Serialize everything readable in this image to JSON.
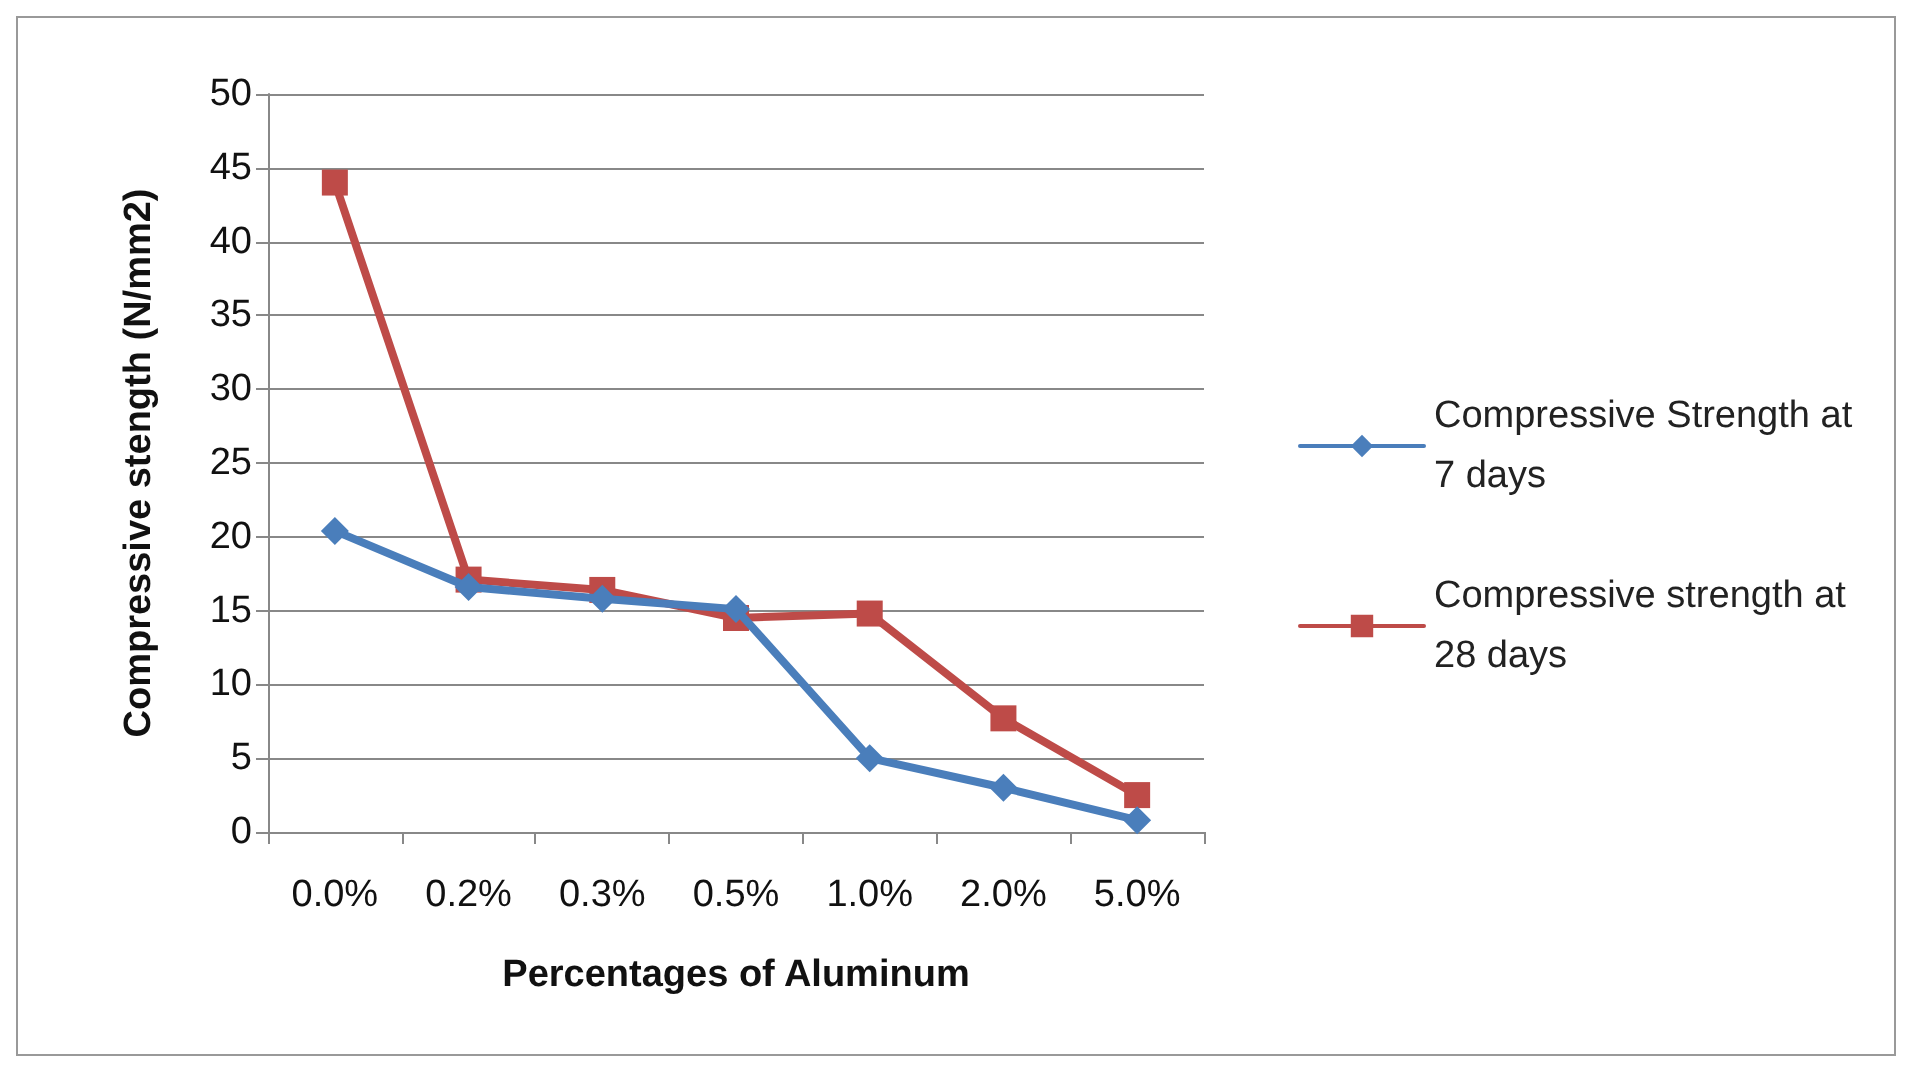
{
  "chart_data": {
    "type": "line",
    "xlabel": "Percentages of Aluminum",
    "ylabel": "Compressive stength (N/mm2)",
    "categories": [
      "0.0%",
      "0.2%",
      "0.3%",
      "0.5%",
      "1.0%",
      "2.0%",
      "5.0%"
    ],
    "series": [
      {
        "name": "Compressive Strength at 7 days",
        "color": "#4a7ebb",
        "marker": "diamond",
        "values": [
          20.4,
          16.6,
          15.8,
          15.1,
          5.0,
          3.0,
          0.8
        ]
      },
      {
        "name": "Compressive strength at 28 days",
        "color": "#be4b48",
        "marker": "square",
        "values": [
          44.0,
          17.1,
          16.4,
          14.5,
          14.8,
          7.7,
          2.5
        ]
      }
    ],
    "ylim": [
      0,
      50
    ],
    "yticks": [
      0,
      5,
      10,
      15,
      20,
      25,
      30,
      35,
      40,
      45,
      50
    ],
    "grid": "y",
    "legend": "right",
    "line_style": "solid"
  }
}
